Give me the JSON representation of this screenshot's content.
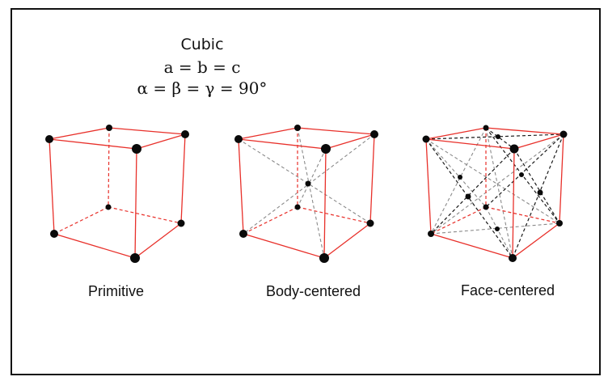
{
  "header": {
    "title": "Cubic",
    "equation_lengths": "a = b = c",
    "equation_angles": "α = β = γ = 90°"
  },
  "lattices": [
    {
      "label": "Primitive"
    },
    {
      "label": "Body-centered"
    },
    {
      "label": "Face-centered"
    }
  ],
  "colors": {
    "edge": "#e8302a",
    "body_diagonal": "#8a8a8a",
    "face_diagonal": "#1a1a1a",
    "atom": "#0a0a0a",
    "frame": "#111111"
  }
}
